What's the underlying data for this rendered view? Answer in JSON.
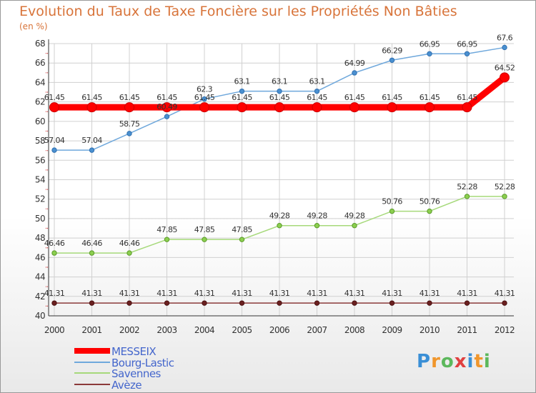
{
  "chart_data": {
    "type": "line",
    "title": "Evolution du Taux de Taxe Foncière sur les Propriétés Non Bâties",
    "unit_label": "(en %)",
    "categories": [
      "2000",
      "2001",
      "2002",
      "2003",
      "2004",
      "2005",
      "2006",
      "2007",
      "2008",
      "2009",
      "2010",
      "2011",
      "2012"
    ],
    "ylim": [
      40,
      68
    ],
    "yticks": [
      40,
      42,
      44,
      46,
      48,
      50,
      52,
      54,
      56,
      58,
      60,
      62,
      64,
      66,
      68
    ],
    "grid": true,
    "legend_position": "bottom-left",
    "series": [
      {
        "name": "MESSEIX",
        "color": "#ff0000",
        "values": [
          61.45,
          61.45,
          61.45,
          61.45,
          61.45,
          61.45,
          61.45,
          61.45,
          61.45,
          61.45,
          61.45,
          61.45,
          64.52
        ],
        "labels": [
          "61.45",
          "61.45",
          "61.45",
          "61.45",
          "61.45",
          "61.45",
          "61.45",
          "61.45",
          "61.45",
          "61.45",
          "61.45",
          "61.45",
          "64.52"
        ]
      },
      {
        "name": "Bourg-Lastic",
        "color": "#6fa8dc",
        "values": [
          57.04,
          57.04,
          58.75,
          60.49,
          62.3,
          63.1,
          63.1,
          63.1,
          64.99,
          66.29,
          66.95,
          66.95,
          67.6
        ],
        "labels": [
          "57.04",
          "57.04",
          "58.75",
          "60.49",
          "62.3",
          "63.1",
          "63.1",
          "63.1",
          "64.99",
          "66.29",
          "66.95",
          "66.95",
          "67.6"
        ]
      },
      {
        "name": "Savennes",
        "color": "#a6d97a",
        "values": [
          46.46,
          46.46,
          46.46,
          47.85,
          47.85,
          47.85,
          49.28,
          49.28,
          49.28,
          50.76,
          50.76,
          52.28,
          52.28
        ],
        "labels": [
          "46.46",
          "46.46",
          "46.46",
          "47.85",
          "47.85",
          "47.85",
          "49.28",
          "49.28",
          "49.28",
          "50.76",
          "50.76",
          "52.28",
          "52.28"
        ]
      },
      {
        "name": "Avèze",
        "color": "#8b3a3a",
        "values": [
          41.31,
          41.31,
          41.31,
          41.31,
          41.31,
          41.31,
          41.31,
          41.31,
          41.31,
          41.31,
          41.31,
          41.31,
          41.31
        ],
        "labels": [
          "41.31",
          "41.31",
          "41.31",
          "41.31",
          "41.31",
          "41.31",
          "41.31",
          "41.31",
          "41.31",
          "41.31",
          "41.31",
          "41.31",
          "41.31"
        ]
      }
    ]
  },
  "logo": {
    "text": "Proxiti",
    "letters": [
      "P",
      "r",
      "o",
      "x",
      "i",
      "t",
      "i"
    ],
    "colors": [
      "#3a8fd6",
      "#f0962c",
      "#5cb85c",
      "#e04040",
      "#3a8fd6",
      "#f0962c",
      "#5cb85c"
    ]
  }
}
